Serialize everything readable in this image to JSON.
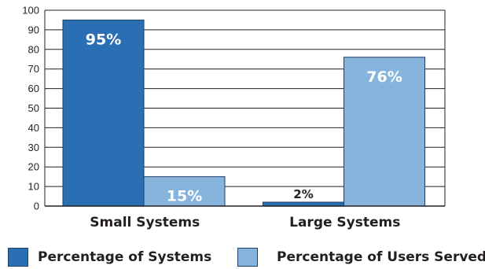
{
  "chart_data": {
    "type": "bar",
    "categories": [
      "Small Systems",
      "Large Systems"
    ],
    "series": [
      {
        "name": "Percentage of Systems",
        "values": [
          95,
          2
        ],
        "labels": [
          "95%",
          "2%"
        ],
        "color": "#2a6fb3"
      },
      {
        "name": "Percentage of Users Served",
        "values": [
          15,
          76
        ],
        "labels": [
          "15%",
          "76%"
        ],
        "color": "#86b4dd"
      }
    ],
    "yticks": [
      "0",
      "10",
      "20",
      "30",
      "40",
      "50",
      "60",
      "70",
      "80",
      "90",
      "100"
    ],
    "ylim": [
      0,
      100
    ],
    "grid": true,
    "legend": "bottom",
    "title": "",
    "xlabel": "",
    "ylabel": ""
  }
}
